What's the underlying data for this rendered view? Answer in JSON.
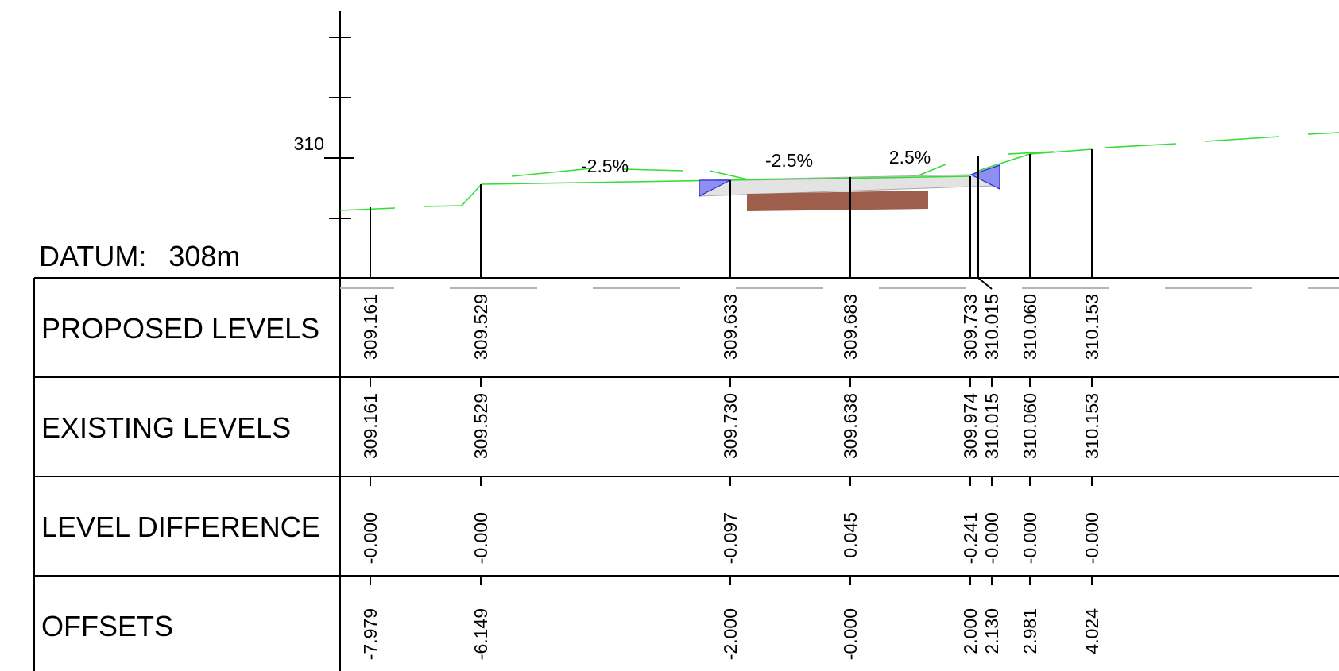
{
  "datum": {
    "label": "DATUM:",
    "value": "308m"
  },
  "axis": {
    "tick_label": "310"
  },
  "slopes": [
    {
      "text": "-2.5%"
    },
    {
      "text": "-2.5%"
    },
    {
      "text": "2.5%"
    }
  ],
  "rows": [
    {
      "label": "PROPOSED LEVELS"
    },
    {
      "label": "EXISTING LEVELS"
    },
    {
      "label": "LEVEL DIFFERENCE"
    },
    {
      "label": "OFFSETS"
    }
  ],
  "stations": [
    {
      "proposed": "309.161",
      "existing": "309.161",
      "difference": "-0.000",
      "offset": "-7.979"
    },
    {
      "proposed": "309.529",
      "existing": "309.529",
      "difference": "-0.000",
      "offset": "-6.149"
    },
    {
      "proposed": "309.633",
      "existing": "309.730",
      "difference": "-0.097",
      "offset": "-2.000"
    },
    {
      "proposed": "309.683",
      "existing": "309.638",
      "difference": "0.045",
      "offset": "-0.000"
    },
    {
      "proposed": "309.733",
      "existing": "309.974",
      "difference": "-0.241",
      "offset": "2.000"
    },
    {
      "proposed": "310.015",
      "existing": "310.015",
      "difference": "-0.000",
      "offset": "2.130"
    },
    {
      "proposed": "310.060",
      "existing": "310.060",
      "difference": "-0.000",
      "offset": "2.981"
    },
    {
      "proposed": "310.153",
      "existing": "310.153",
      "difference": "-0.000",
      "offset": "4.024"
    }
  ],
  "colors": {
    "ground_line": "#33dd33",
    "cut_fill_triangle": "#8f8ff0",
    "pavement": "#e3e3e3",
    "pipe": "#9e5e4c",
    "guide_dash": "#b5b5b5"
  }
}
